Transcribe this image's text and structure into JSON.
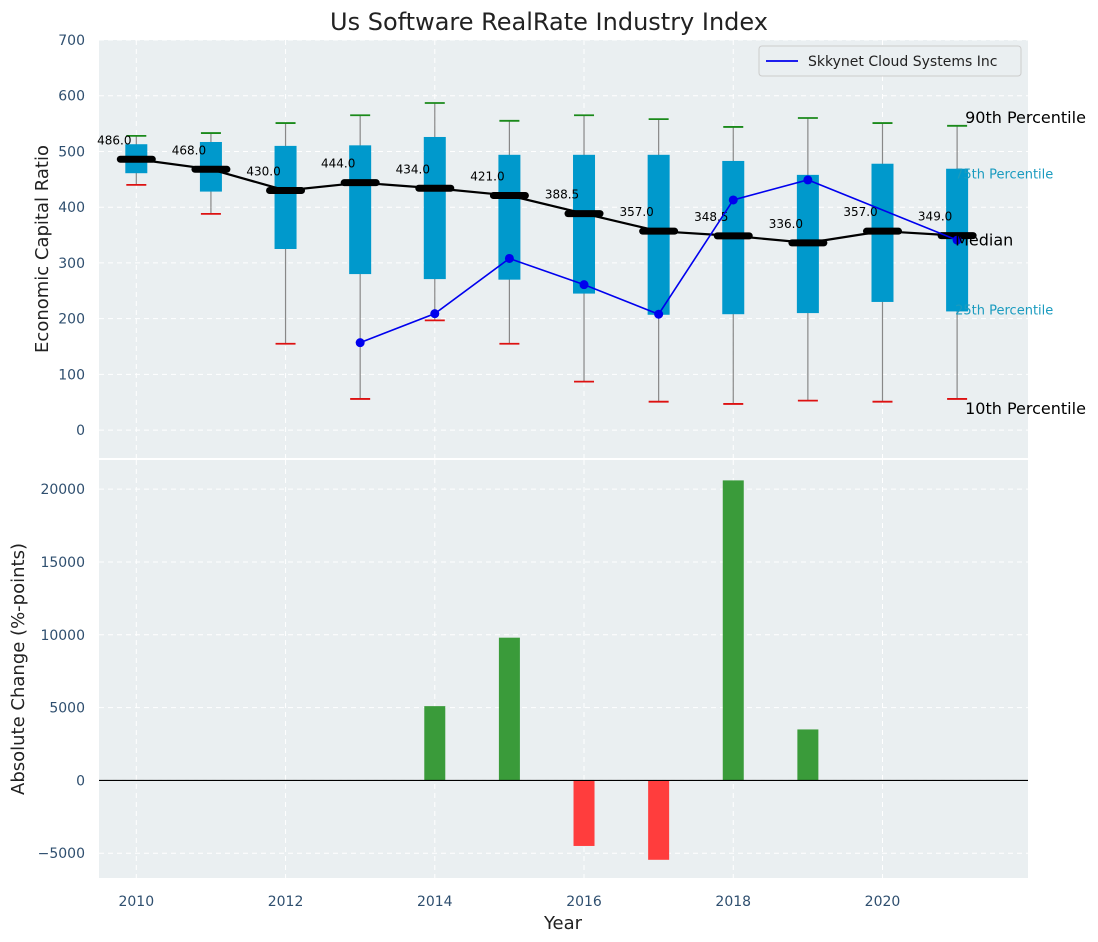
{
  "chart_data": [
    {
      "type": "box",
      "title": "Us Software RealRate Industry Index",
      "ylabel": "Economic Capital Ratio",
      "ylim": [
        -50,
        700
      ],
      "yticks": [
        0,
        100,
        200,
        300,
        400,
        500,
        600,
        700
      ],
      "grid": true,
      "legend_position": "top-right",
      "years": [
        2010,
        2011,
        2012,
        2013,
        2014,
        2015,
        2016,
        2017,
        2018,
        2019,
        2020,
        2021
      ],
      "p10": [
        440,
        388,
        155,
        56,
        197,
        155,
        87,
        51,
        47,
        53,
        51,
        56
      ],
      "p25": [
        461,
        428,
        325,
        280,
        271,
        270,
        245,
        207,
        208,
        210,
        230,
        213
      ],
      "median": [
        486.0,
        468.0,
        430.0,
        444.0,
        434.0,
        421.0,
        388.5,
        357.0,
        348.5,
        336.0,
        357.0,
        349.0
      ],
      "median_labels": [
        "486.0",
        "468.0",
        "430.0",
        "444.0",
        "434.0",
        "421.0",
        "388.5",
        "357.0",
        "348.5",
        "336.0",
        "357.0",
        "349.0"
      ],
      "p75": [
        513,
        517,
        510,
        511,
        526,
        494,
        494,
        494,
        483,
        458,
        478,
        469
      ],
      "p90": [
        528,
        533,
        551,
        565,
        587,
        555,
        565,
        558,
        544,
        560,
        551,
        546
      ],
      "series": [
        {
          "name": "Skkynet Cloud Systems Inc",
          "x": [
            2013,
            2014,
            2015,
            2016,
            2017,
            2018,
            2019,
            2021
          ],
          "values": [
            157,
            209,
            308,
            261,
            208,
            413,
            449,
            341
          ]
        }
      ],
      "percentile_labels": {
        "p90": "90th Percentile",
        "p75": "75th Percentile",
        "median": "Median",
        "p25": "25th Percentile",
        "p10": "10th Percentile"
      }
    },
    {
      "type": "bar",
      "xlabel": "Year",
      "ylabel": "Absolute Change (%-points)",
      "ylim": [
        -6700,
        22000
      ],
      "yticks": [
        -5000,
        0,
        5000,
        10000,
        15000,
        20000
      ],
      "ytick_labels": [
        "−5000",
        "0",
        "5000",
        "10000",
        "15000",
        "20000"
      ],
      "xticks": [
        2010,
        2012,
        2014,
        2016,
        2018,
        2020
      ],
      "xlim": [
        2009.5,
        2021.95
      ],
      "grid": true,
      "categories": [
        2014,
        2015,
        2016,
        2017,
        2018,
        2019
      ],
      "values": [
        5100,
        9800,
        -4500,
        -5450,
        20600,
        3500
      ]
    }
  ],
  "colors": {
    "background": "#ffffff",
    "plot_bg": "#eaeff1",
    "box": "#0099cc",
    "median_line": "#000000",
    "series": "#0000ee",
    "whisker_top": "#1a8a1a",
    "whisker_bottom": "#dd1111",
    "bar_positive": "#3a9b3a",
    "bar_negative": "#ff3d3d",
    "tick_text": "#2f4f6f"
  }
}
